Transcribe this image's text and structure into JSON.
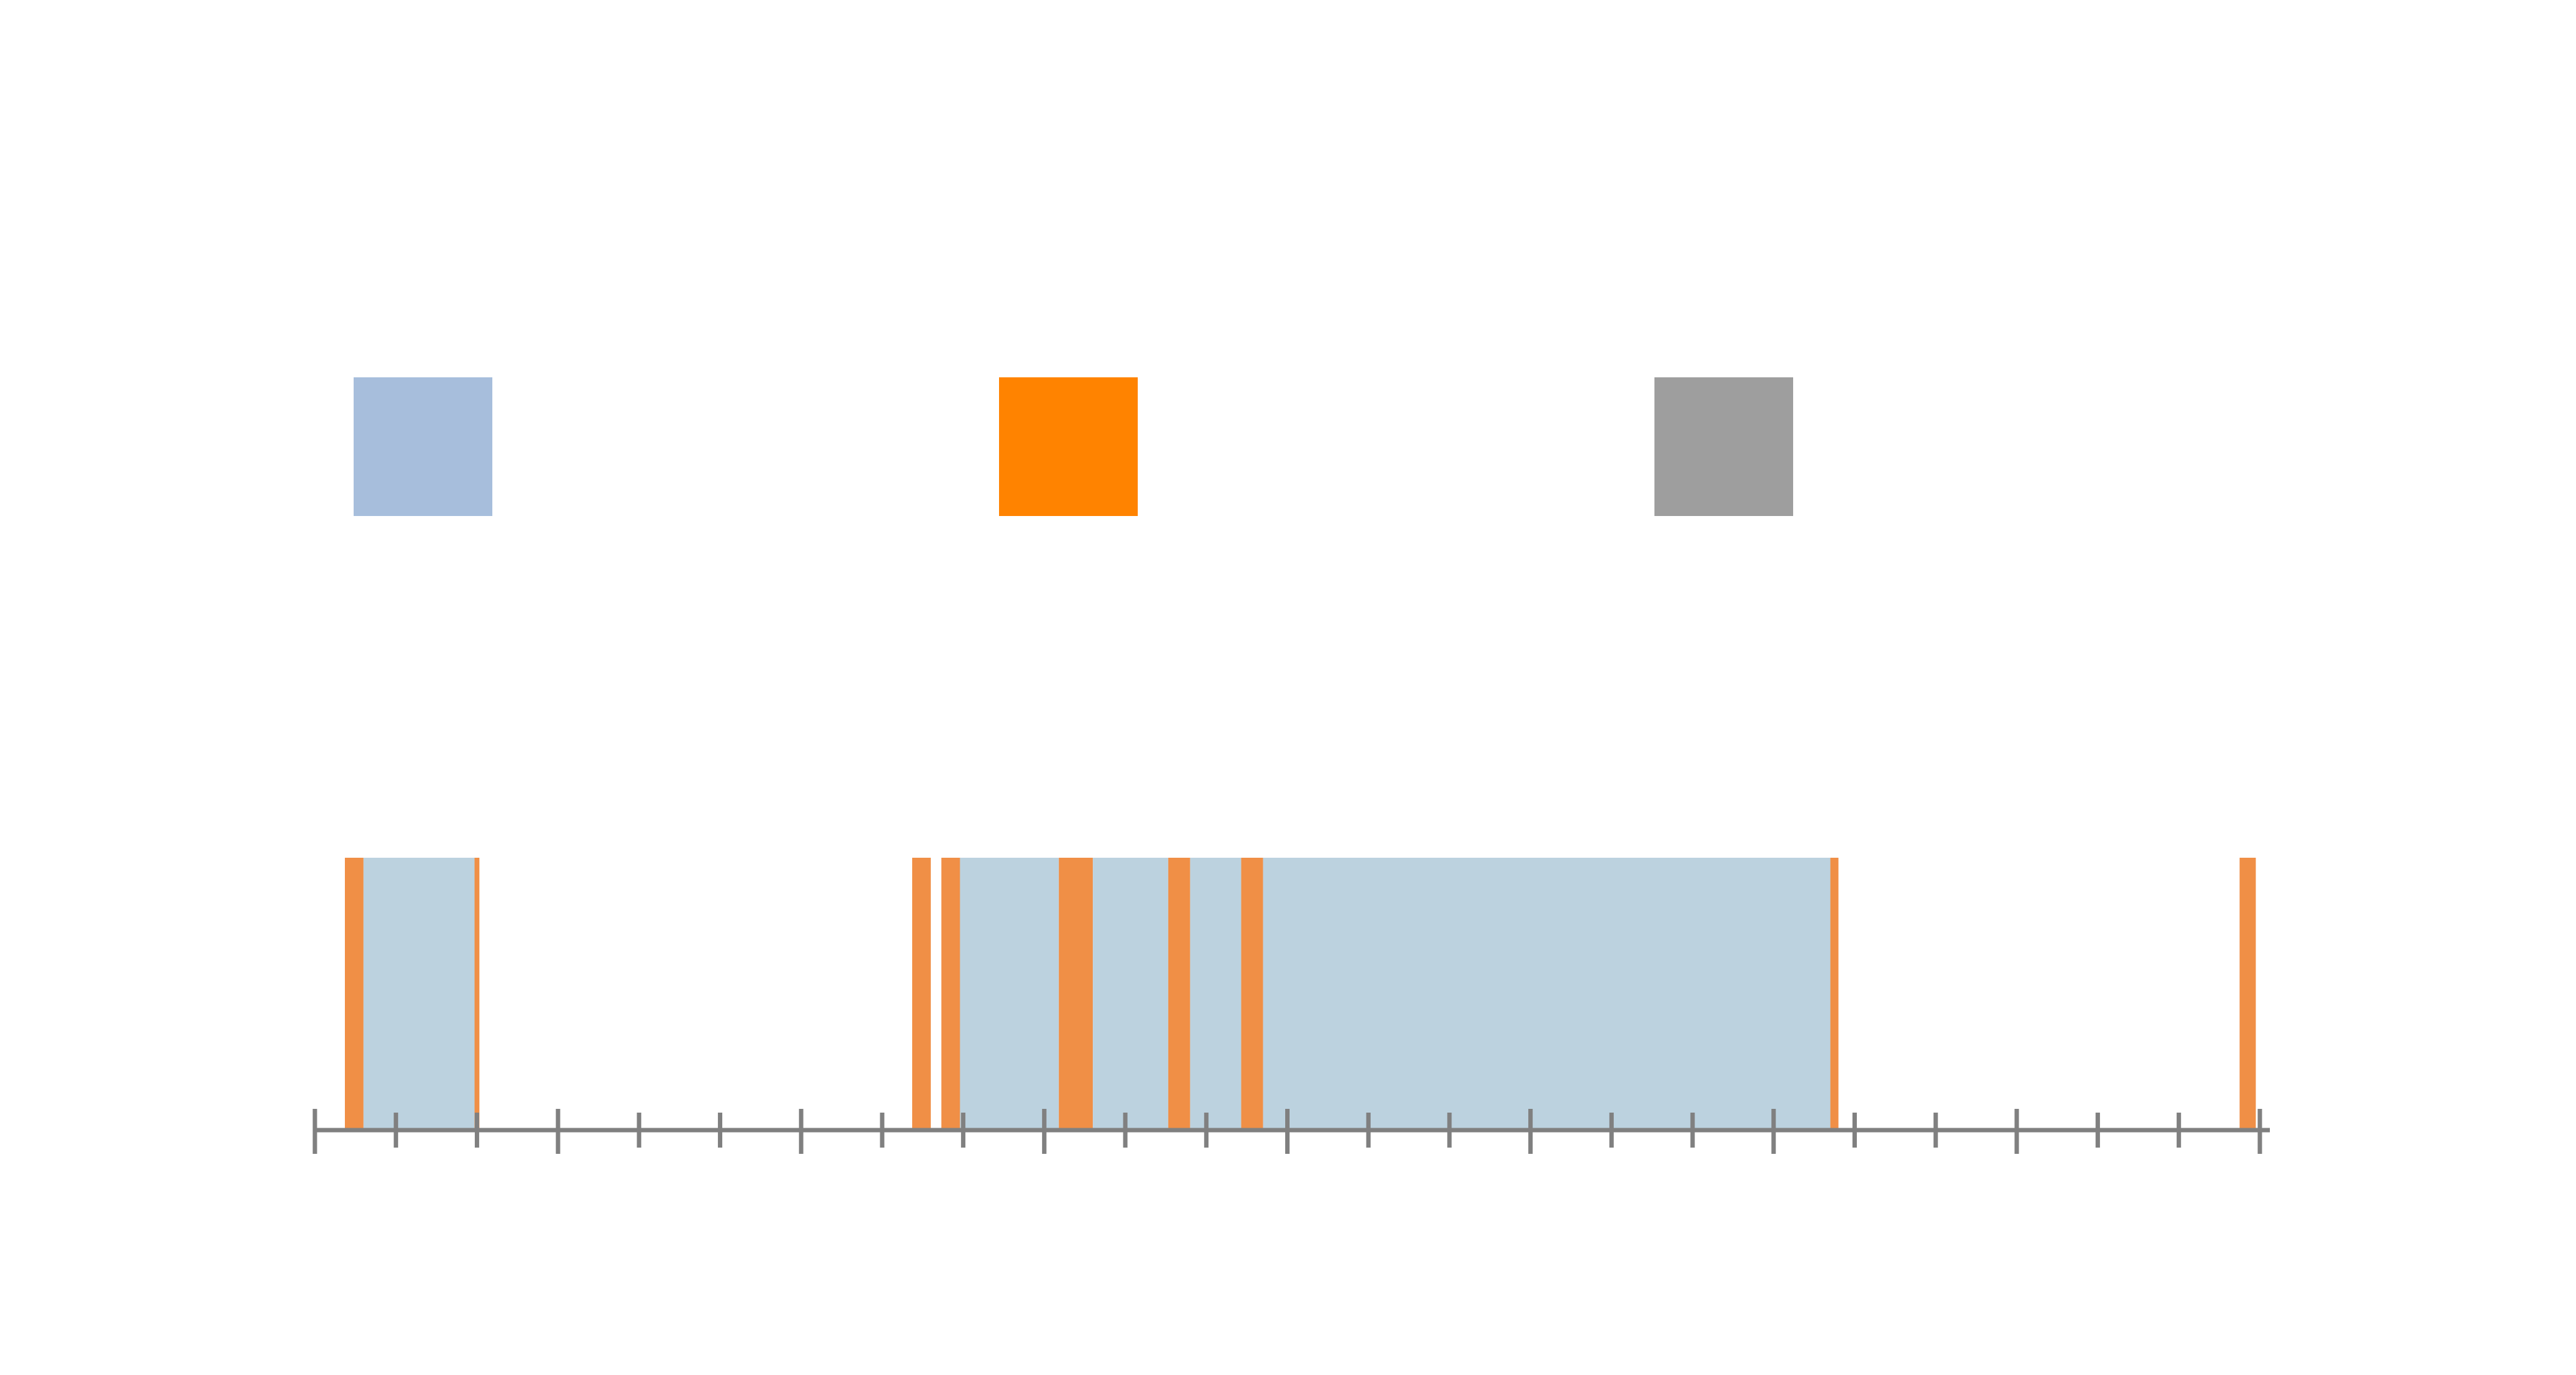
{
  "chart_data": {
    "type": "timeline",
    "title": "",
    "xlabel": "",
    "ylabel": "",
    "xlim": [
      0,
      24
    ],
    "grid": false,
    "legend_position": "top",
    "legend": [
      {
        "name": "",
        "color": "#a7bedc"
      },
      {
        "name": "",
        "color": "#ff8300"
      },
      {
        "name": "",
        "color": "#9e9e9e"
      }
    ],
    "segment_colors": {
      "state_a": "#bcd2df",
      "state_b": "#f08f46"
    },
    "segments": [
      {
        "state": "state_b",
        "start": 0.37,
        "end": 0.6
      },
      {
        "state": "state_a",
        "start": 0.6,
        "end": 1.97
      },
      {
        "state": "state_b",
        "start": 1.97,
        "end": 2.03
      },
      {
        "state": "state_b",
        "start": 7.37,
        "end": 7.6
      },
      {
        "state": "state_b",
        "start": 7.73,
        "end": 7.96
      },
      {
        "state": "state_a",
        "start": 7.96,
        "end": 9.18
      },
      {
        "state": "state_b",
        "start": 9.18,
        "end": 9.6
      },
      {
        "state": "state_a",
        "start": 9.6,
        "end": 10.53
      },
      {
        "state": "state_b",
        "start": 10.53,
        "end": 10.8
      },
      {
        "state": "state_a",
        "start": 10.8,
        "end": 11.43
      },
      {
        "state": "state_b",
        "start": 11.43,
        "end": 11.7
      },
      {
        "state": "state_a",
        "start": 11.7,
        "end": 18.7
      },
      {
        "state": "state_b",
        "start": 18.7,
        "end": 18.8
      },
      {
        "state": "state_b",
        "start": 23.75,
        "end": 23.95
      }
    ],
    "ticks": {
      "major_every": 3,
      "minor_every": 1
    }
  }
}
